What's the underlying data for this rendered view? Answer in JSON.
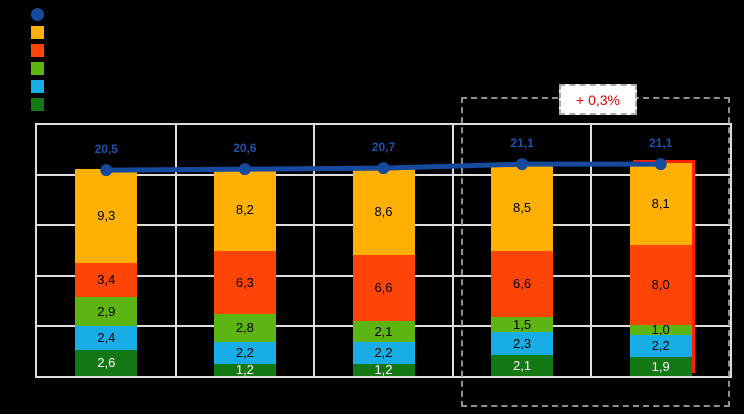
{
  "legend": {
    "items": [
      {
        "name": "line-series-marker",
        "shape": "dot",
        "color": "#164A9E"
      },
      {
        "name": "amber-series",
        "shape": "square",
        "color": "#FFB005"
      },
      {
        "name": "orange-red-series",
        "shape": "square",
        "color": "#FF4408"
      },
      {
        "name": "light-green-series",
        "shape": "square",
        "color": "#5CB512"
      },
      {
        "name": "light-blue-series",
        "shape": "square",
        "color": "#19ADE6"
      },
      {
        "name": "dark-green-series",
        "shape": "square",
        "color": "#147814"
      }
    ]
  },
  "annotation": {
    "label": "+ 0,3%",
    "color": "#E60000"
  },
  "chart_data": {
    "type": "bar",
    "subtype": "stacked-bar-with-line",
    "n_columns": 5,
    "ylim": [
      0,
      25
    ],
    "grid_interval": 5,
    "grid_on": true,
    "series": [
      {
        "name": "segment-dark-green",
        "color": "#147814",
        "label_color": "#FFFFFF",
        "values": [
          2.6,
          1.2,
          1.2,
          2.1,
          1.9
        ],
        "labels": [
          "2,6",
          "1,2",
          "1,2",
          "2,1",
          "1,9"
        ]
      },
      {
        "name": "segment-light-blue",
        "color": "#19ADE6",
        "label_color": "#000000",
        "values": [
          2.4,
          2.2,
          2.2,
          2.3,
          2.2
        ],
        "labels": [
          "2,4",
          "2,2",
          "2,2",
          "2,3",
          "2,2"
        ]
      },
      {
        "name": "segment-light-green",
        "color": "#5CB512",
        "label_color": "#000000",
        "values": [
          2.9,
          2.8,
          2.1,
          1.5,
          1.0
        ],
        "labels": [
          "2,9",
          "2,8",
          "2,1",
          "1,5",
          "1,0"
        ]
      },
      {
        "name": "segment-orange-red",
        "color": "#FF4408",
        "label_color": "#000000",
        "values": [
          3.4,
          6.3,
          6.6,
          6.6,
          8.0
        ],
        "labels": [
          "3,4",
          "6,3",
          "6,6",
          "6,6",
          "8,0"
        ]
      },
      {
        "name": "segment-amber",
        "color": "#FFB005",
        "label_color": "#000000",
        "values": [
          9.3,
          8.2,
          8.6,
          8.5,
          8.1
        ],
        "labels": [
          "9,3",
          "8,2",
          "8,6",
          "8,5",
          "8,1"
        ]
      }
    ],
    "line_series": {
      "name": "total-line",
      "color": "#164A9E",
      "label_color": "#1C52AE",
      "values": [
        20.5,
        20.6,
        20.7,
        21.1,
        21.1
      ],
      "labels": [
        "20,5",
        "20,6",
        "20,7",
        "21,1",
        "21,1"
      ]
    },
    "highlight": {
      "columns": [
        4,
        5
      ],
      "style": "dashed-box",
      "box_border_color": "#8F8F8F",
      "last_bar_edge_color": "#FF2000"
    }
  }
}
